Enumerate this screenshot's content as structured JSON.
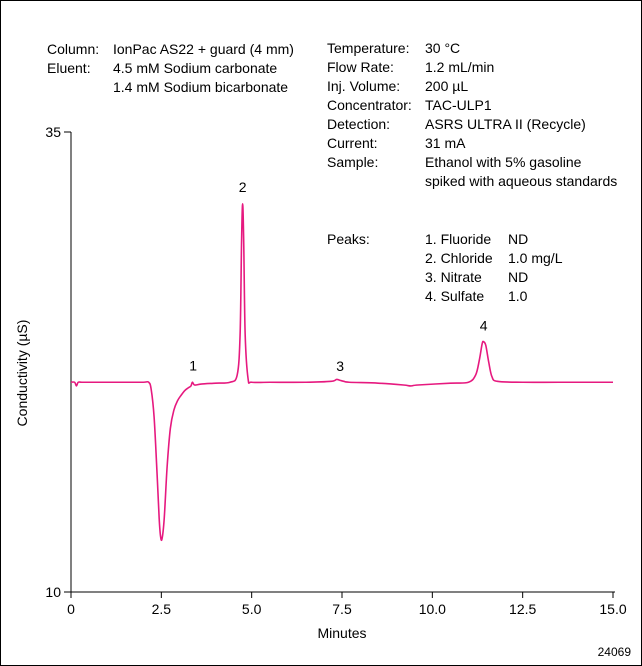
{
  "conditions_left": [
    {
      "label": "Column:",
      "value": "IonPac AS22 + guard (4 mm)"
    },
    {
      "label": "Eluent:",
      "value": "4.5 mM Sodium carbonate"
    },
    {
      "label": "",
      "value": "1.4 mM Sodium bicarbonate"
    }
  ],
  "conditions_right": [
    {
      "label": "Temperature:",
      "value": "30 °C"
    },
    {
      "label": "Flow Rate:",
      "value": "1.2 mL/min"
    },
    {
      "label": "Inj. Volume:",
      "value": "200 µL"
    },
    {
      "label": "Concentrator:",
      "value": "TAC-ULP1"
    },
    {
      "label": "Detection:",
      "value": "ASRS ULTRA II (Recycle)"
    },
    {
      "label": "Current:",
      "value": "31 mA"
    },
    {
      "label": "Sample:",
      "value": "Ethanol with 5% gasoline"
    },
    {
      "label": "",
      "value": "spiked with aqueous standards"
    }
  ],
  "peaks_label": "Peaks:",
  "peaks_table": [
    {
      "name": "1. Fluoride",
      "amount": "ND"
    },
    {
      "name": "2. Chloride",
      "amount": "1.0 mg/L"
    },
    {
      "name": "3. Nitrate",
      "amount": "ND"
    },
    {
      "name": "4. Sulfate",
      "amount": "1.0"
    }
  ],
  "figure_id": "24069",
  "colors": {
    "trace": "#e6197f",
    "axis": "#000000"
  },
  "chart_data": {
    "type": "line",
    "xlabel": "Minutes",
    "ylabel": "Conductivity (µS)",
    "xlim": [
      0,
      15
    ],
    "ylim": [
      10,
      35
    ],
    "x_ticks": [
      "0",
      "2.5",
      "5.0",
      "7.5",
      "10.0",
      "12.5",
      "15.0"
    ],
    "x_tick_values": [
      0,
      2.5,
      5.0,
      7.5,
      10.0,
      12.5,
      15.0
    ],
    "y_ticks": [
      "10",
      "35"
    ],
    "y_tick_values": [
      10,
      35
    ],
    "grid": false,
    "baseline": 21.4,
    "series": [
      {
        "x": [
          0,
          0.1,
          0.15,
          0.2,
          0.3,
          0.6,
          1.0,
          1.5,
          2.0,
          2.15,
          2.22,
          2.3,
          2.38,
          2.44,
          2.48,
          2.52,
          2.58,
          2.66,
          2.75,
          2.85,
          2.95,
          3.05,
          3.15,
          3.25,
          3.32,
          3.36,
          3.42,
          3.6,
          4.0,
          4.4,
          4.6,
          4.68,
          4.72,
          4.75,
          4.78,
          4.82,
          4.9,
          5.0,
          5.5,
          6.5,
          7.2,
          7.35,
          7.45,
          7.55,
          7.7,
          8.5,
          9.2,
          9.4,
          9.6,
          10.5,
          11.0,
          11.2,
          11.3,
          11.38,
          11.42,
          11.48,
          11.56,
          11.65,
          11.8,
          12.5,
          13.5,
          15.0
        ],
        "y": [
          21.4,
          21.4,
          21.2,
          21.4,
          21.4,
          21.4,
          21.4,
          21.4,
          21.4,
          21.4,
          21.0,
          19.5,
          16.5,
          14.0,
          13.0,
          12.9,
          14.0,
          16.8,
          18.9,
          19.9,
          20.4,
          20.7,
          20.95,
          21.1,
          21.2,
          21.4,
          21.25,
          21.3,
          21.35,
          21.4,
          21.8,
          24.0,
          29.0,
          31.1,
          29.0,
          24.0,
          21.6,
          21.4,
          21.4,
          21.4,
          21.45,
          21.55,
          21.5,
          21.45,
          21.4,
          21.35,
          21.25,
          21.2,
          21.25,
          21.35,
          21.4,
          21.8,
          22.6,
          23.5,
          23.6,
          23.4,
          22.5,
          21.7,
          21.45,
          21.4,
          21.4,
          21.4
        ]
      }
    ],
    "peak_labels": [
      {
        "label": "1",
        "x": 3.38,
        "y": 22.05
      },
      {
        "label": "2",
        "x": 4.75,
        "y": 31.75
      },
      {
        "label": "3",
        "x": 7.45,
        "y": 22.0
      },
      {
        "label": "4",
        "x": 11.42,
        "y": 24.2
      }
    ]
  }
}
